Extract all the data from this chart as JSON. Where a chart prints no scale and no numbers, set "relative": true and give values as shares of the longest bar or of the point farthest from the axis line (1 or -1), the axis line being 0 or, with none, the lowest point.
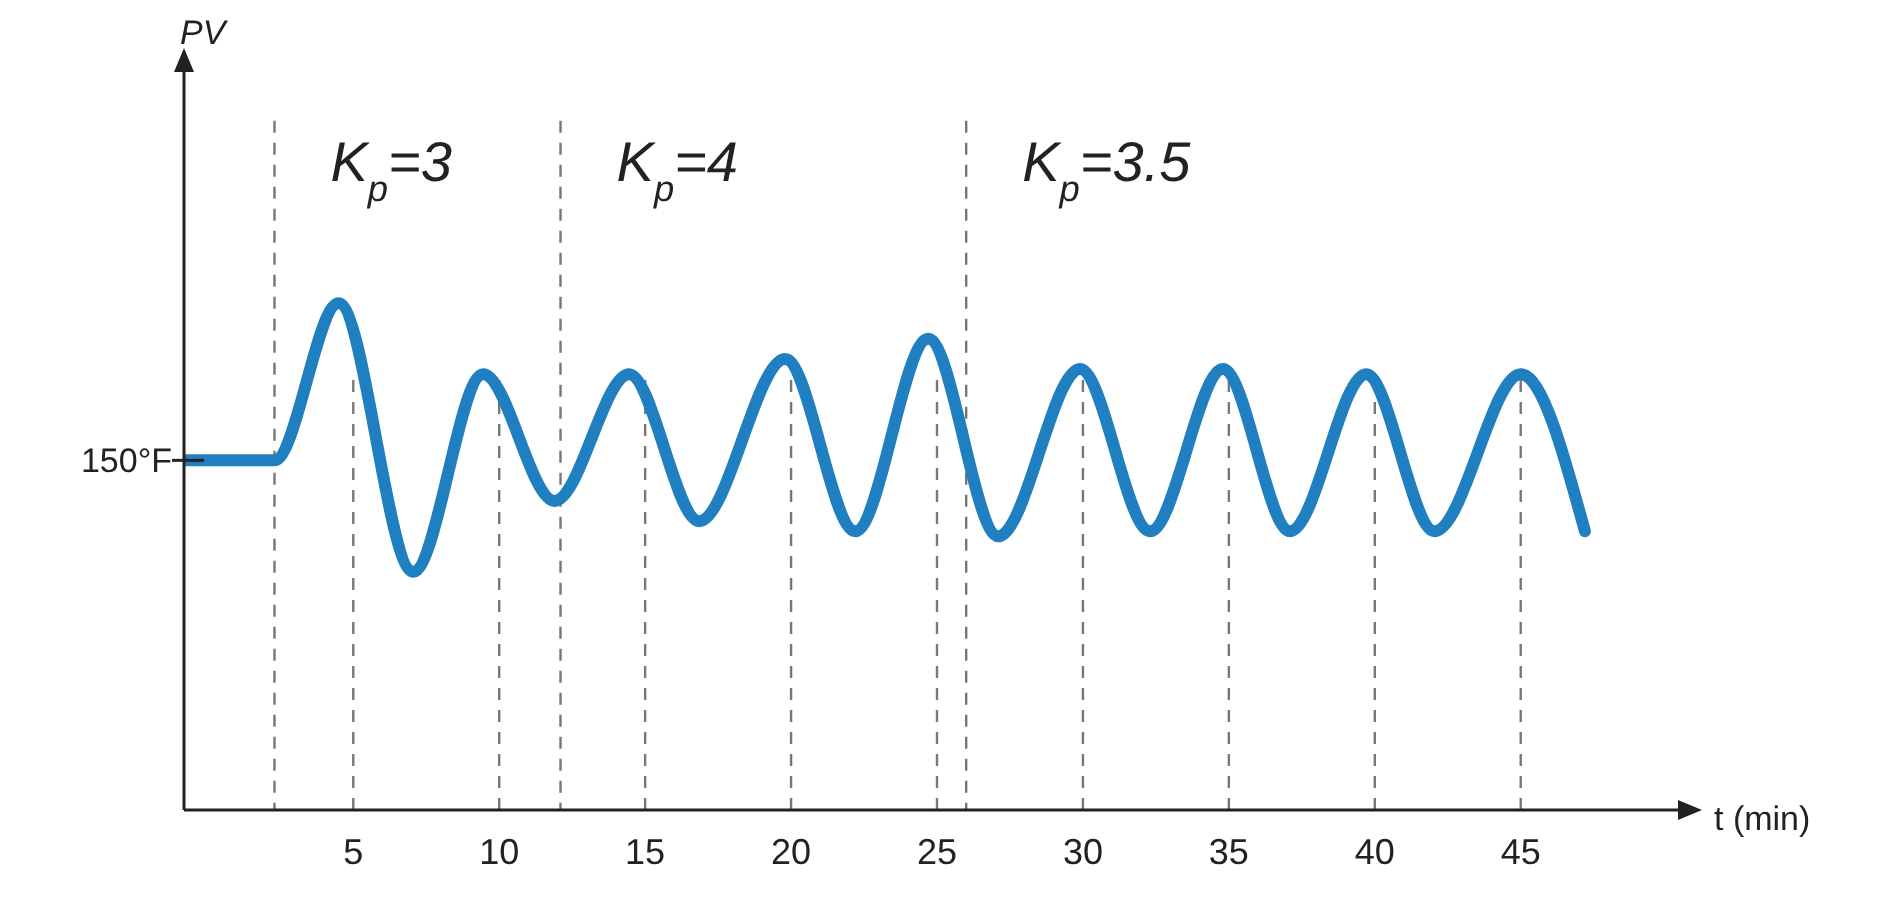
{
  "chart_data": {
    "type": "line",
    "relative": true,
    "xlabel": "t (min)",
    "x": [
      -0.8,
      2.3,
      4.5,
      7.05,
      9.45,
      11.9,
      14.45,
      16.85,
      19.8,
      22.2,
      24.7,
      27.1,
      29.9,
      32.3,
      34.8,
      37.1,
      39.7,
      42.05,
      45,
      47.2
    ],
    "series": [
      {
        "color": "#1f7fc1",
        "values": [
          0.69,
          0.69,
          1,
          0.47,
          0.86,
          0.61,
          0.86,
          0.57,
          0.89,
          0.55,
          0.93,
          0.54,
          0.87,
          0.55,
          0.87,
          0.55,
          0.86,
          0.55,
          0.86,
          0.55
        ]
      }
    ],
    "xlim": [
      -0.8,
      50.8
    ],
    "xticks": [
      5,
      10,
      15,
      20,
      25,
      30,
      35,
      40,
      45
    ],
    "grid": "x",
    "marker": "none",
    "line_style": "solid",
    "ref_lines": [
      {
        "axis": "x",
        "value": 2.3,
        "line_style": "dashed"
      },
      {
        "axis": "x",
        "value": 12.1,
        "line_style": "dashed"
      },
      {
        "axis": "x",
        "value": 26,
        "line_style": "dashed"
      }
    ],
    "annotations": [
      "PV",
      "150°F",
      "K$_{p}$=3",
      "K$_{p}$=4",
      "K$_{p}$=3.5"
    ]
  }
}
